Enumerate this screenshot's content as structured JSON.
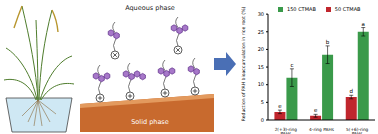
{
  "chart_data": {
    "type": "bar",
    "y_label": "Reduction of PAH bioaccumulation in rice root (%)",
    "categories": [
      "2(+3)-ring PAHs",
      "4-ring PAHs",
      "5(+6)-ring PAHs"
    ],
    "series": [
      {
        "name": "50 CTMAB",
        "color": "#c0262d",
        "values": [
          2.3,
          1.2,
          6.5
        ],
        "error": [
          0.5,
          0.4,
          0.5
        ],
        "annotations": [
          "e",
          "e",
          "d"
        ]
      },
      {
        "name": "150 CTMAB",
        "color": "#3a9a4a",
        "values": [
          12,
          18.5,
          25
        ],
        "error": [
          2.5,
          2.5,
          1.2
        ],
        "annotations": [
          "c",
          "b",
          "a"
        ]
      }
    ],
    "ylim": [
      0,
      30
    ],
    "yticks": [
      0,
      5,
      10,
      15,
      20,
      25,
      30
    ],
    "grid": false,
    "legend": "top"
  },
  "diagram": {
    "aqueous_label": "Aqueous phase",
    "solid_label": "Solid phase"
  }
}
